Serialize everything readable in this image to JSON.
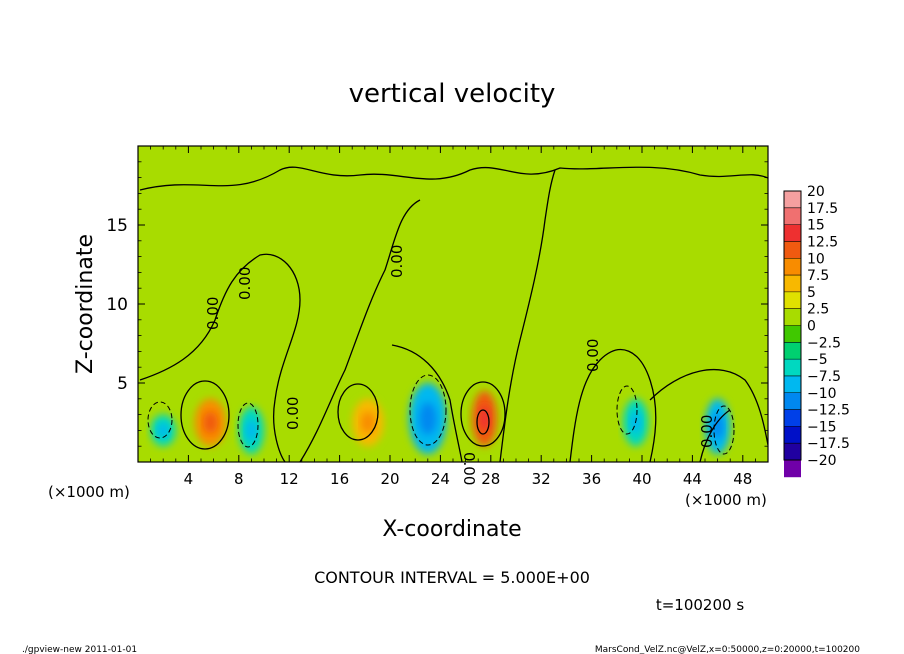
{
  "chart_data": {
    "type": "heatmap",
    "title": "vertical velocity",
    "xlabel": "X-coordinate",
    "ylabel": "Z-coordinate",
    "x_unit_left": "(×1000 m)",
    "x_unit_right": "(×1000 m)",
    "xlim": [
      0,
      50
    ],
    "ylim": [
      0,
      20
    ],
    "x_ticks": [
      4,
      8,
      12,
      16,
      20,
      24,
      28,
      32,
      36,
      40,
      44,
      48
    ],
    "y_ticks": [
      5,
      10,
      15
    ],
    "contour_interval_text": "CONTOUR INTERVAL = 5.000E+00",
    "time_text": "t=100200 s",
    "zero_contour_label": "0.00",
    "colorbar": {
      "levels": [
        20,
        17.5,
        15,
        12.5,
        10,
        7.5,
        5,
        2.5,
        0,
        -2.5,
        -5,
        -7.5,
        -10,
        -12.5,
        -15,
        -17.5,
        -20
      ],
      "level_labels": [
        "20",
        "17.5",
        "15",
        "12.5",
        "10",
        "7.5",
        "5",
        "2.5",
        "0",
        "−2.5",
        "−5",
        "−7.5",
        "−10",
        "−12.5",
        "−15",
        "−17.5",
        "−20"
      ],
      "colors": [
        "#f5a0a0",
        "#f07070",
        "#ee3030",
        "#f05a10",
        "#f88c00",
        "#f8b800",
        "#e0e000",
        "#a8dc00",
        "#40c800",
        "#00d070",
        "#00d8c0",
        "#00b8f0",
        "#0088f0",
        "#0040e8",
        "#0010c8",
        "#2000a0",
        "#7000a8"
      ]
    },
    "cells": [
      {
        "x": [
          1,
          3
        ],
        "z": [
          1,
          3
        ],
        "value": -7
      },
      {
        "x": [
          4.5,
          7
        ],
        "z": [
          1,
          4
        ],
        "value": 9
      },
      {
        "x": [
          8,
          10
        ],
        "z": [
          0.5,
          3.5
        ],
        "value": -6
      },
      {
        "x": [
          17,
          19.5
        ],
        "z": [
          1,
          4
        ],
        "value": 5
      },
      {
        "x": [
          21.5,
          24.5
        ],
        "z": [
          0.5,
          5
        ],
        "value": -8
      },
      {
        "x": [
          26.5,
          28.5
        ],
        "z": [
          1,
          4.5
        ],
        "value": 12
      },
      {
        "x": [
          38.5,
          40.5
        ],
        "z": [
          1,
          4
        ],
        "value": -6
      },
      {
        "x": [
          45,
          47
        ],
        "z": [
          0.5,
          4
        ],
        "value": -10
      }
    ],
    "footer_left": "./gpview-new  2011-01-01",
    "footer_right": "MarsCond_VelZ.nc@VelZ,x=0:50000,z=0:20000,t=100200"
  }
}
